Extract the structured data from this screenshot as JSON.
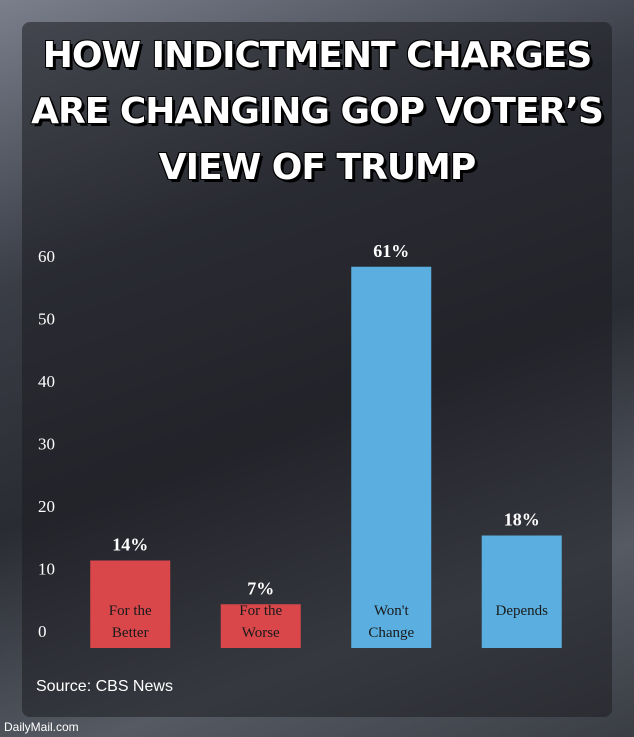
{
  "chart_data": {
    "type": "bar",
    "title": "HOW INDICTMENT CHARGES ARE CHANGING GOP VOTER’S VIEW OF TRUMP",
    "categories": [
      "For the Better",
      "For the Worse",
      "Won't Change",
      "Depends"
    ],
    "values": [
      14,
      7,
      61,
      18
    ],
    "value_labels": [
      "14%",
      "7%",
      "61%",
      "18%"
    ],
    "colors": [
      "#d9474b",
      "#d9474b",
      "#5aafe0",
      "#5aafe0"
    ],
    "ylim": [
      0,
      64
    ],
    "yticks": [
      0,
      10,
      20,
      30,
      40,
      50,
      60
    ],
    "grid": false,
    "source": "Source: CBS News"
  },
  "watermark": "DailyMail.com"
}
